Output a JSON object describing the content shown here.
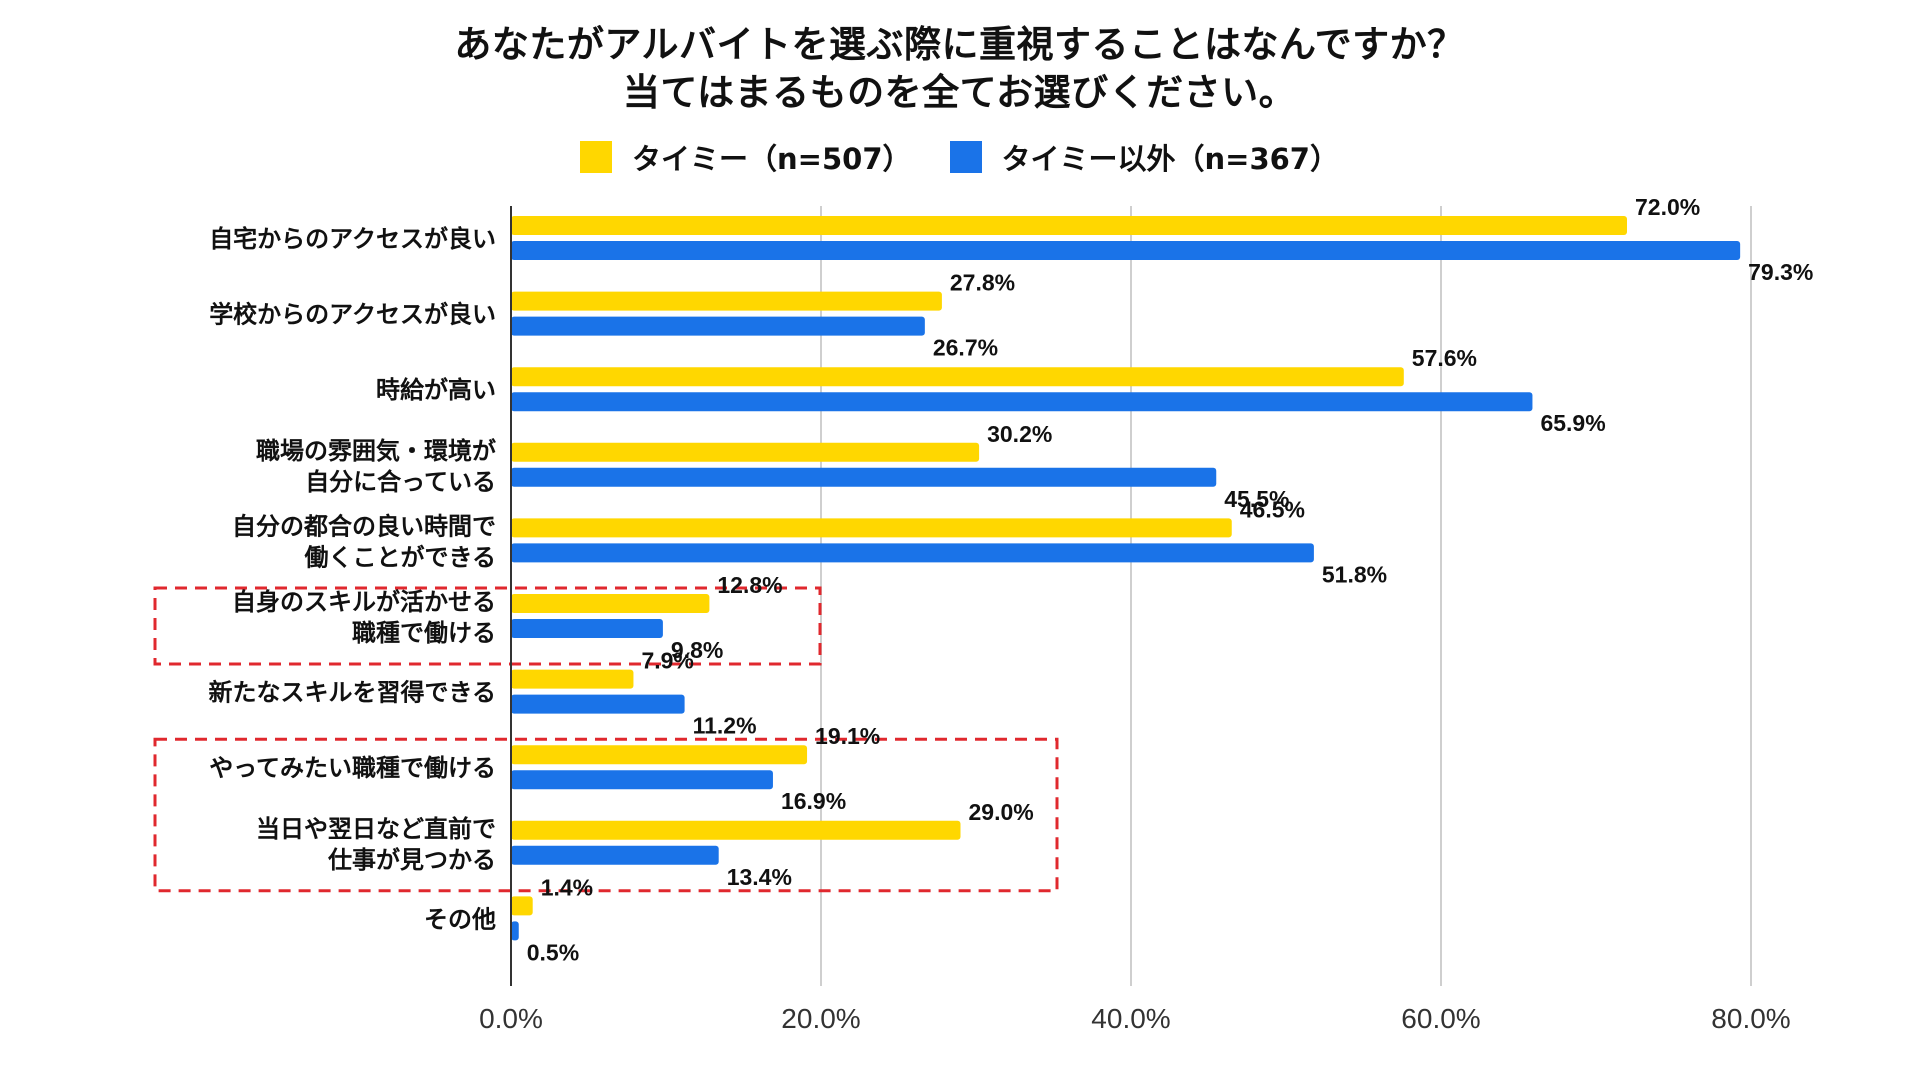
{
  "chart_data": {
    "type": "bar",
    "orientation": "horizontal",
    "title_lines": [
      "あなたがアルバイトを選ぶ際に重視することはなんですか？",
      "当てはまるものを全てお選びください。"
    ],
    "categories": [
      [
        "自宅からのアクセスが良い"
      ],
      [
        "学校からのアクセスが良い"
      ],
      [
        "時給が高い"
      ],
      [
        "職場の雰囲気・環境が",
        "自分に合っている"
      ],
      [
        "自分の都合の良い時間で",
        "働くことができる"
      ],
      [
        "自身のスキルが活かせる",
        "職種で働ける"
      ],
      [
        "新たなスキルを習得できる"
      ],
      [
        "やってみたい職種で働ける"
      ],
      [
        "当日や翌日など直前で",
        "仕事が見つかる"
      ],
      [
        "その他"
      ]
    ],
    "series": [
      {
        "name": "タイミー（n=507）",
        "color": "#FFD700",
        "values": [
          72.0,
          27.8,
          57.6,
          30.2,
          46.5,
          12.8,
          7.9,
          19.1,
          29.0,
          1.4
        ],
        "labels": [
          "72.0%",
          "27.8%",
          "57.6%",
          "30.2%",
          "46.5%",
          "12.8%",
          "7.9%",
          "19.1%",
          "29.0%",
          "1.4%"
        ]
      },
      {
        "name": "タイミー以外（n=367）",
        "color": "#1A73E8",
        "values": [
          79.3,
          26.7,
          65.9,
          45.5,
          51.8,
          9.8,
          11.2,
          16.9,
          13.4,
          0.5
        ],
        "labels": [
          "79.3%",
          "26.7%",
          "65.9%",
          "45.5%",
          "51.8%",
          "9.8%",
          "11.2%",
          "16.9%",
          "13.4%",
          "0.5%"
        ]
      }
    ],
    "xlim": [
      0,
      80
    ],
    "xticks": [
      0,
      20,
      40,
      60,
      80
    ],
    "xtick_labels": [
      "0.0%",
      "20.0%",
      "40.0%",
      "60.0%",
      "80.0%"
    ],
    "grid": true,
    "legend_position": "top",
    "highlight_groups": [
      [
        5,
        5
      ],
      [
        7,
        8
      ]
    ],
    "highlight_color": "#E0282E"
  }
}
